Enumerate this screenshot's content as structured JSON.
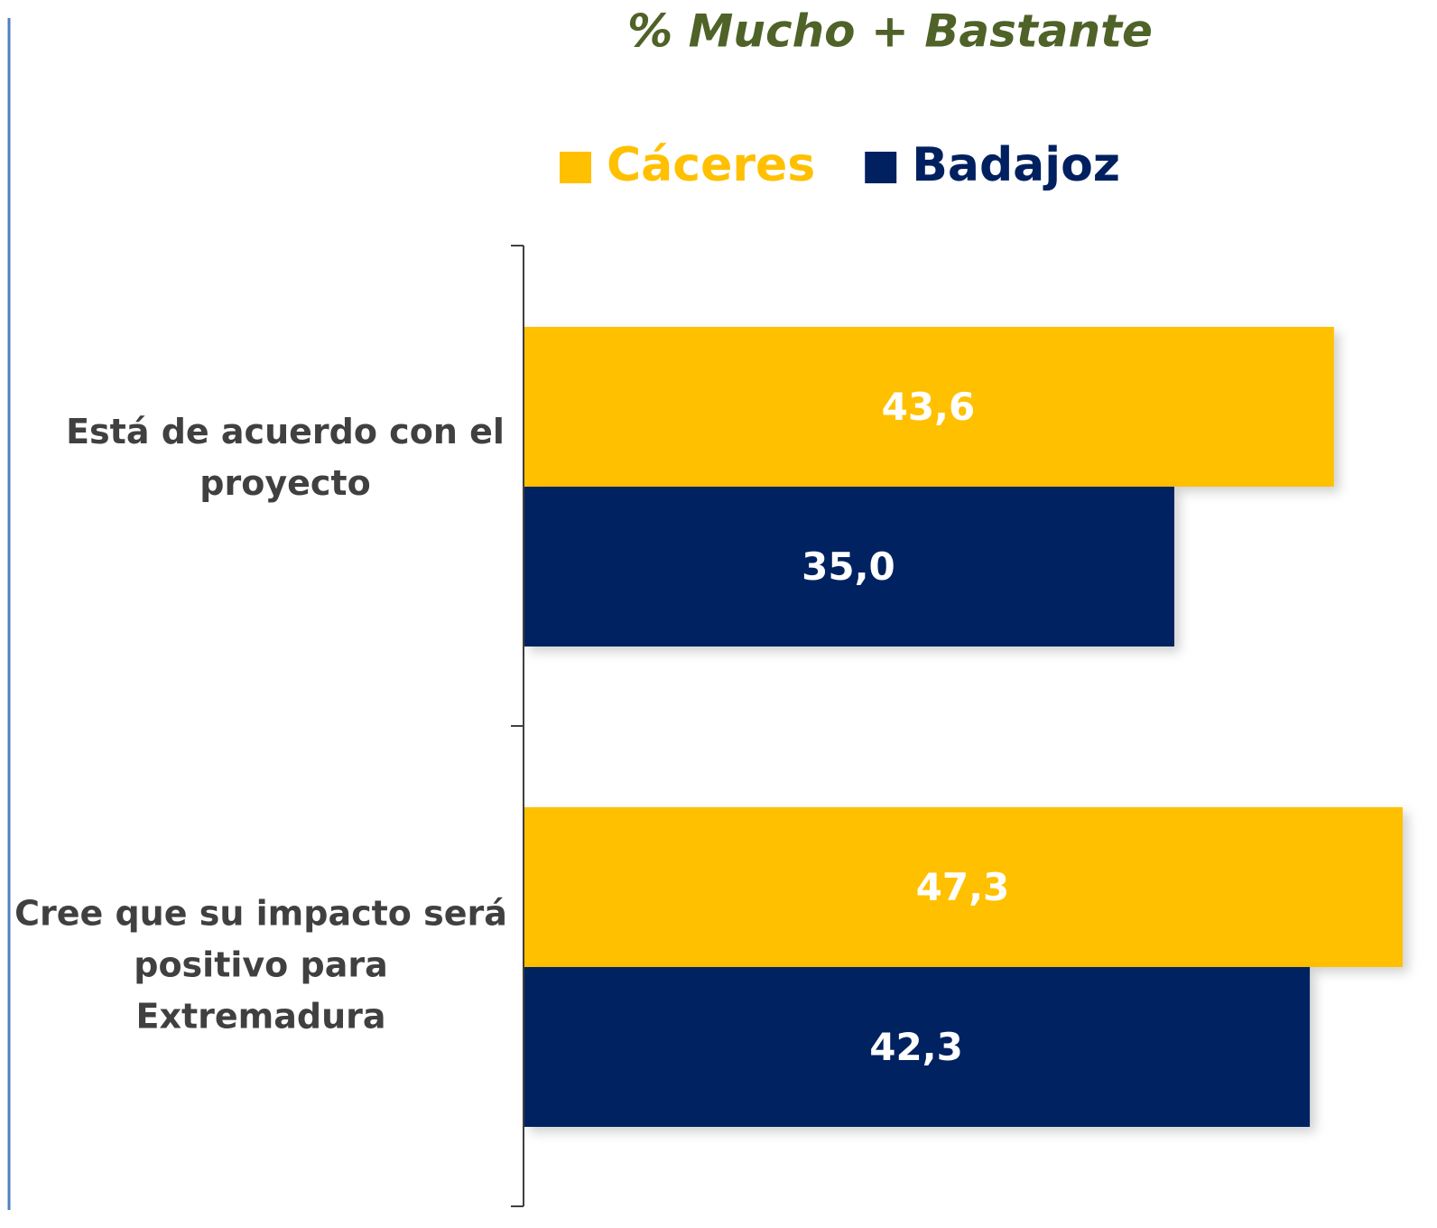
{
  "chart_data": {
    "type": "barh",
    "title": "% Mucho + Bastante",
    "categories": [
      [
        "Está de acuerdo con el",
        "proyecto"
      ],
      [
        "Cree que su impacto será",
        "positivo para",
        "Extremadura"
      ]
    ],
    "series": [
      {
        "name": "Cáceres",
        "color": "#ffc000",
        "values": [
          43.6,
          47.3
        ],
        "value_labels": [
          "43,6",
          "47,3"
        ]
      },
      {
        "name": "Badajoz",
        "color": "#002060",
        "values": [
          35.0,
          42.3
        ],
        "value_labels": [
          "35,0",
          "42,3"
        ]
      }
    ]
  }
}
